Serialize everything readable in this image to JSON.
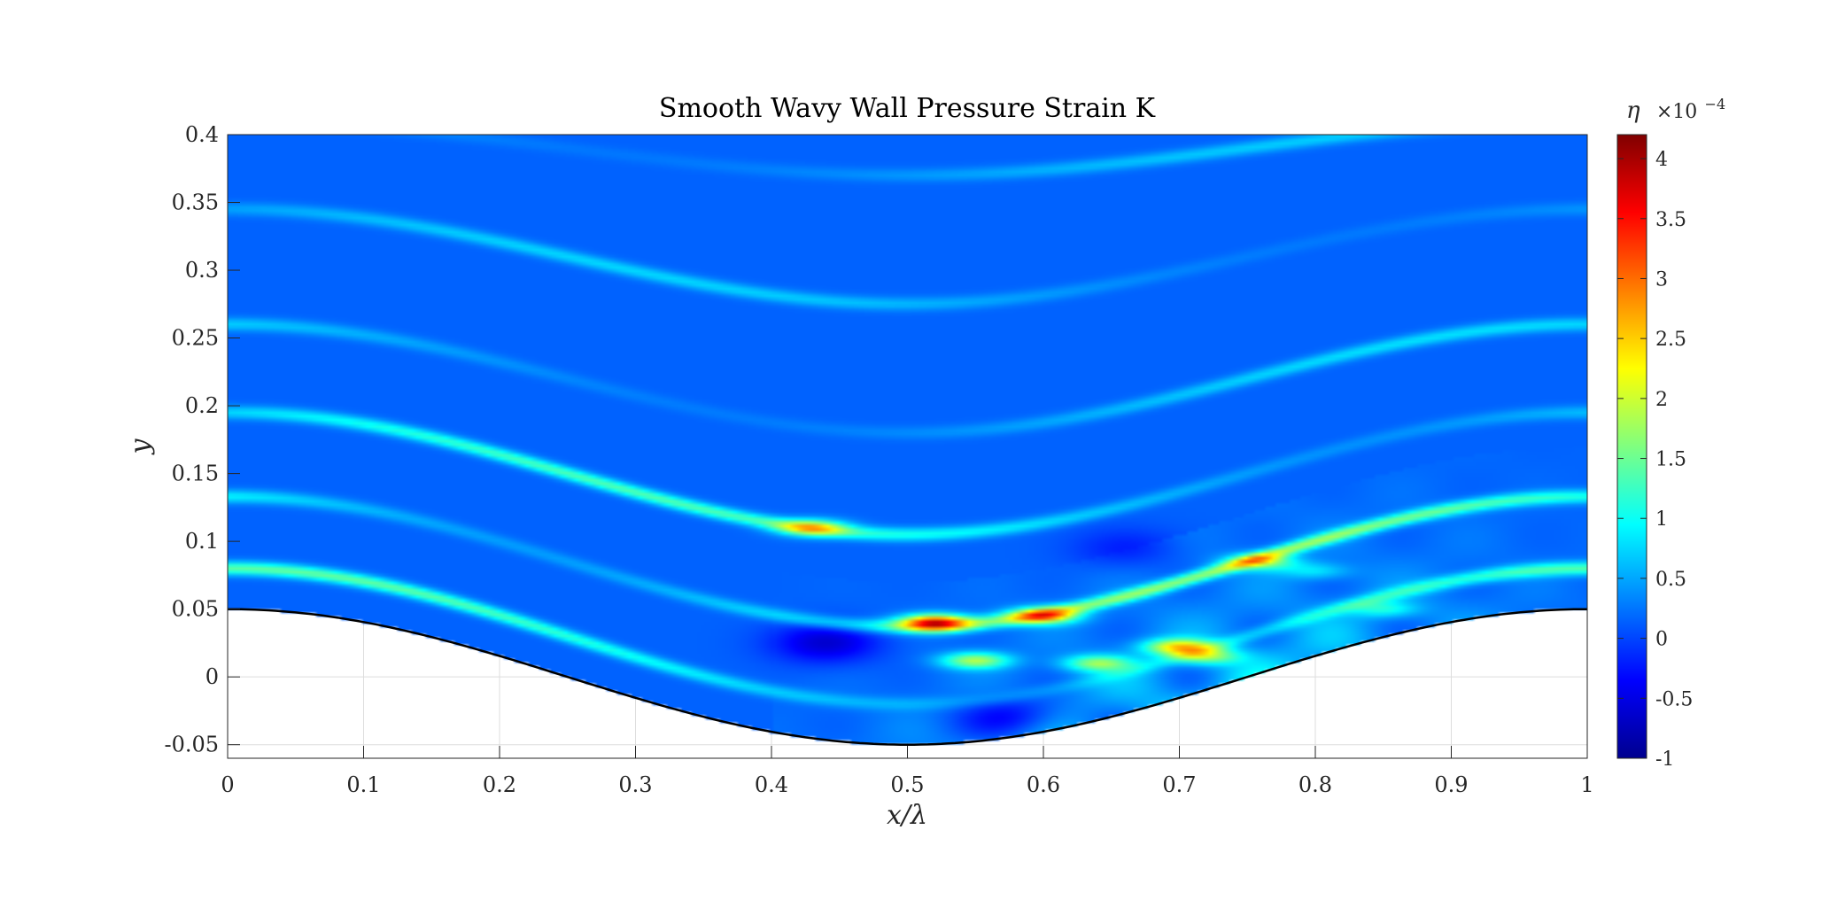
{
  "chart_data": {
    "type": "heatmap",
    "title": "Smooth Wavy Wall Pressure Strain K",
    "xlabel": "x/λ",
    "ylabel": "y",
    "xlim": [
      0,
      1
    ],
    "ylim": [
      -0.06,
      0.4
    ],
    "x_ticks": [
      0,
      0.1,
      0.2,
      0.3,
      0.4,
      0.5,
      0.6,
      0.7,
      0.8,
      0.9,
      1
    ],
    "x_tick_labels": [
      "0",
      "0.1",
      "0.2",
      "0.3",
      "0.4",
      "0.5",
      "0.6",
      "0.7",
      "0.8",
      "0.9",
      "1"
    ],
    "y_ticks": [
      -0.05,
      0,
      0.05,
      0.1,
      0.15,
      0.2,
      0.25,
      0.3,
      0.35,
      0.4
    ],
    "y_tick_labels": [
      "-0.05",
      "0",
      "0.05",
      "0.1",
      "0.15",
      "0.2",
      "0.25",
      "0.3",
      "0.35",
      "0.4"
    ],
    "grid": true,
    "colormap": "jet",
    "colorbar": {
      "symbol": "η",
      "multiplier": "×10",
      "exponent": "−4",
      "clim": [
        -1,
        4.2
      ],
      "ticks": [
        -1,
        -0.5,
        0,
        0.5,
        1,
        1.5,
        2,
        2.5,
        3,
        3.5,
        4
      ],
      "tick_labels": [
        "-1",
        "-0.5",
        "0",
        "0.5",
        "1",
        "1.5",
        "2",
        "2.5",
        "3",
        "3.5",
        "4"
      ]
    },
    "wall": {
      "amplitude": 0.05,
      "wavelength": 1,
      "shape": "y = 0.05·cos(2πx/λ)"
    },
    "field": {
      "background_value": 0.15,
      "ridges": [
        {
          "y0": 0.39,
          "amp": 0.02,
          "value": 0.55
        },
        {
          "y0": 0.31,
          "amp": 0.035,
          "value": 0.6
        },
        {
          "y0": 0.22,
          "amp": 0.04,
          "value": 0.65
        },
        {
          "y0": 0.15,
          "amp": 0.045,
          "value": 1.2
        },
        {
          "y0": 0.085,
          "amp": 0.048,
          "value": 1.5
        },
        {
          "y0": 0.03,
          "amp": 0.05,
          "value": 1.3
        }
      ],
      "hot_spots": [
        {
          "x": 0.52,
          "y": 0.04,
          "value": 4.0
        },
        {
          "x": 0.43,
          "y": 0.11,
          "value": 2.7
        },
        {
          "x": 0.6,
          "y": 0.045,
          "value": 3.2
        },
        {
          "x": 0.55,
          "y": 0.012,
          "value": 2.6
        },
        {
          "x": 0.64,
          "y": 0.01,
          "value": 2.4
        },
        {
          "x": 0.7,
          "y": 0.022,
          "value": 3.0
        },
        {
          "x": 0.72,
          "y": 0.015,
          "value": 2.3
        },
        {
          "x": 0.76,
          "y": 0.085,
          "value": 2.5
        },
        {
          "x": 0.85,
          "y": 0.05,
          "value": 1.8
        },
        {
          "x": 0.8,
          "y": 0.078,
          "value": 1.6
        }
      ],
      "cold_spots": [
        {
          "x": 0.44,
          "y": 0.025,
          "value": -0.6
        },
        {
          "x": 0.58,
          "y": -0.03,
          "value": -0.5
        },
        {
          "x": 0.66,
          "y": 0.095,
          "value": -0.2
        }
      ]
    }
  }
}
